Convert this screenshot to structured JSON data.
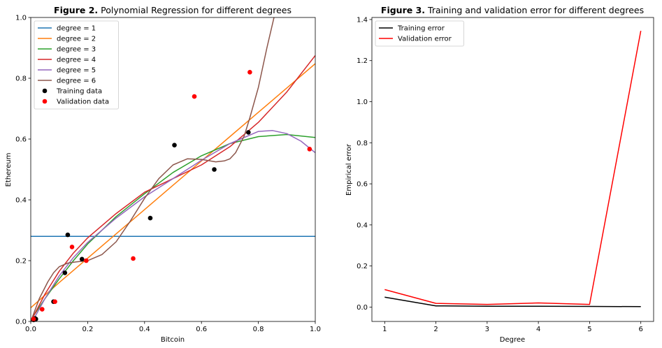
{
  "chart_data": [
    {
      "type": "line",
      "title_prefix": "Figure 2.",
      "title": "Polynomial Regression for different degrees",
      "xlabel": "Bitcoin",
      "ylabel": "Ethereum",
      "xlim": [
        0,
        1
      ],
      "ylim": [
        0,
        1
      ],
      "xticks": [
        "0.0",
        "0.2",
        "0.4",
        "0.6",
        "0.8",
        "1.0"
      ],
      "yticks": [
        "0.0",
        "0.2",
        "0.4",
        "0.6",
        "0.8",
        "1.0"
      ],
      "legend_position": "top-left",
      "series": [
        {
          "name": "degree = 1",
          "color": "#1f77b4",
          "x": [
            0,
            1
          ],
          "y": [
            0.28,
            0.28
          ]
        },
        {
          "name": "degree = 2",
          "color": "#ff7f0e",
          "x": [
            0,
            0.1,
            0.2,
            0.3,
            0.4,
            0.5,
            0.6,
            0.7,
            0.8,
            0.9,
            1.0
          ],
          "y": [
            0.045,
            0.128,
            0.208,
            0.288,
            0.368,
            0.448,
            0.528,
            0.608,
            0.688,
            0.768,
            0.848
          ]
        },
        {
          "name": "degree = 3",
          "color": "#2ca02c",
          "x": [
            0,
            0.05,
            0.1,
            0.15,
            0.2,
            0.3,
            0.4,
            0.5,
            0.6,
            0.7,
            0.8,
            0.9,
            1.0
          ],
          "y": [
            0.005,
            0.075,
            0.14,
            0.2,
            0.255,
            0.345,
            0.42,
            0.49,
            0.545,
            0.585,
            0.608,
            0.615,
            0.605
          ]
        },
        {
          "name": "degree = 4",
          "color": "#d62728",
          "x": [
            0,
            0.05,
            0.1,
            0.15,
            0.2,
            0.3,
            0.4,
            0.5,
            0.6,
            0.7,
            0.8,
            0.9,
            1.0
          ],
          "y": [
            0.0,
            0.09,
            0.165,
            0.225,
            0.275,
            0.355,
            0.425,
            0.47,
            0.515,
            0.575,
            0.655,
            0.755,
            0.875
          ]
        },
        {
          "name": "degree = 5",
          "color": "#9467bd",
          "x": [
            0,
            0.05,
            0.1,
            0.15,
            0.2,
            0.3,
            0.4,
            0.5,
            0.6,
            0.7,
            0.8,
            0.85,
            0.9,
            0.95,
            1.0
          ],
          "y": [
            -0.01,
            0.075,
            0.15,
            0.21,
            0.26,
            0.34,
            0.41,
            0.47,
            0.53,
            0.585,
            0.625,
            0.628,
            0.618,
            0.593,
            0.555
          ]
        },
        {
          "name": "degree = 6",
          "color": "#8c564b",
          "x": [
            0,
            0.03,
            0.06,
            0.08,
            0.1,
            0.13,
            0.16,
            0.2,
            0.25,
            0.3,
            0.35,
            0.4,
            0.45,
            0.5,
            0.55,
            0.6,
            0.65,
            0.68,
            0.7,
            0.72,
            0.75,
            0.77,
            0.8,
            0.83,
            0.86
          ],
          "y": [
            0.0,
            0.075,
            0.13,
            0.16,
            0.18,
            0.192,
            0.196,
            0.2,
            0.22,
            0.262,
            0.33,
            0.405,
            0.47,
            0.515,
            0.535,
            0.533,
            0.525,
            0.528,
            0.535,
            0.555,
            0.61,
            0.67,
            0.77,
            0.9,
            1.02
          ]
        }
      ],
      "scatter": [
        {
          "name": "Training data",
          "color": "#000000",
          "points": [
            [
              0.01,
              0.005
            ],
            [
              0.015,
              0.01
            ],
            [
              0.018,
              0.008
            ],
            [
              0.08,
              0.065
            ],
            [
              0.12,
              0.16
            ],
            [
              0.13,
              0.285
            ],
            [
              0.18,
              0.205
            ],
            [
              0.42,
              0.34
            ],
            [
              0.505,
              0.58
            ],
            [
              0.645,
              0.5
            ],
            [
              0.765,
              0.622
            ]
          ]
        },
        {
          "name": "Validation data",
          "color": "#ff0000",
          "points": [
            [
              0.01,
              0.008
            ],
            [
              0.04,
              0.04
            ],
            [
              0.085,
              0.065
            ],
            [
              0.145,
              0.245
            ],
            [
              0.195,
              0.2
            ],
            [
              0.36,
              0.207
            ],
            [
              0.575,
              0.74
            ],
            [
              0.77,
              0.82
            ],
            [
              0.98,
              0.567
            ]
          ]
        }
      ]
    },
    {
      "type": "line",
      "title_prefix": "Figure 3.",
      "title": "Training and validation error for different degrees",
      "xlabel": "Degree",
      "ylabel": "Empirical error",
      "xlim": [
        0.75,
        6.25
      ],
      "ylim": [
        -0.07,
        1.41
      ],
      "xticks": [
        "1",
        "2",
        "3",
        "4",
        "5",
        "6"
      ],
      "yticks": [
        "0.0",
        "0.2",
        "0.4",
        "0.6",
        "0.8",
        "1.0",
        "1.2",
        "1.4"
      ],
      "legend_position": "top-left",
      "series": [
        {
          "name": "Training error",
          "color": "#000000",
          "x": [
            1,
            2,
            3,
            4,
            5,
            6
          ],
          "y": [
            0.048,
            0.006,
            0.004,
            0.004,
            0.003,
            0.002
          ]
        },
        {
          "name": "Validation error",
          "color": "#ff0000",
          "x": [
            1,
            2,
            3,
            4,
            5,
            6
          ],
          "y": [
            0.085,
            0.018,
            0.013,
            0.02,
            0.013,
            1.345
          ]
        }
      ]
    }
  ]
}
